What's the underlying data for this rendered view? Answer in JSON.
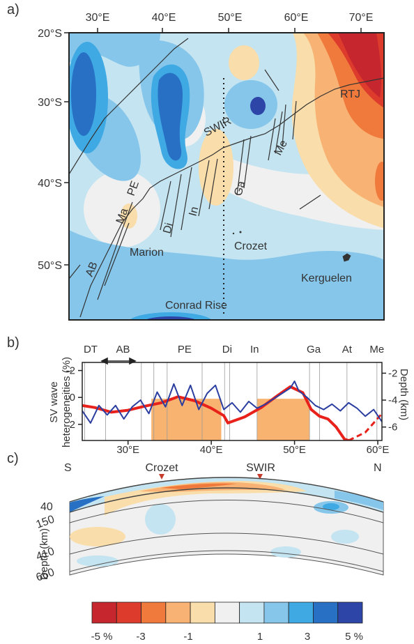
{
  "colors": {
    "ridge": "#333333",
    "frame": "#222222",
    "velocity_line": "#e8211b",
    "sv_line": "#2b3ea0",
    "ridge_fill": "#f7b36f"
  },
  "panel_a": {
    "label": "a)",
    "lon_ticks": [
      "30°E",
      "40°E",
      "50°E",
      "60°E",
      "70°E"
    ],
    "lat_ticks": [
      "20°S",
      "30°S",
      "40°S",
      "50°S"
    ],
    "features": {
      "rtj": "RTJ",
      "swir": "SWIR",
      "me": "Me",
      "ga": "Ga",
      "pe": "PE",
      "ma": "Ma",
      "di": "Di",
      "in": "In",
      "ab": "AB",
      "marion": "Marion",
      "crozet": "Crozet",
      "kerguelen": "Kerguelen",
      "conrad": "Conrad Rise"
    }
  },
  "panel_b": {
    "label": "b)",
    "ylabel_left_1": "SV wave",
    "ylabel_left_2": "heterogeneities (%)",
    "ylabel_right": "Depth (km)",
    "segments": [
      "DT",
      "AB",
      "PE",
      "Di",
      "In",
      "Ga",
      "At",
      "Me"
    ],
    "chart_data": {
      "type": "line",
      "x_ticks": [
        "30°E",
        "40°E",
        "50°E",
        "60°E"
      ],
      "xlim": [
        24.5,
        60.5
      ],
      "left_axis": {
        "ticks": [
          "-2",
          "0",
          "2"
        ],
        "ylim": [
          -2.6,
          3.2
        ],
        "inverted": true
      },
      "right_axis": {
        "ticks": [
          "-2",
          "-4",
          "-6"
        ],
        "ylim": [
          -1.2,
          -7.0
        ]
      },
      "shaded_x_ranges": [
        [
          32.8,
          41.2
        ],
        [
          45.5,
          51.8
        ]
      ],
      "series": [
        {
          "x": [
            24.5,
            26,
            28,
            30,
            32,
            34,
            36,
            38,
            40,
            41.5,
            42,
            44,
            46,
            48,
            49.5,
            51,
            52,
            53,
            54,
            55,
            56,
            56.5,
            57.5,
            58.5,
            59.5,
            60.5
          ],
          "y": [
            -4.4,
            -4.55,
            -4.9,
            -4.75,
            -4.45,
            -4.2,
            -3.75,
            -4.05,
            -4.6,
            -5.15,
            -5.7,
            -5.25,
            -4.55,
            -3.65,
            -3.0,
            -3.45,
            -4.7,
            -5.2,
            -5.4,
            -6.0,
            -6.9,
            -7.0,
            null,
            -6.4,
            -5.7,
            -5.0
          ],
          "axis": "right"
        },
        {
          "x": [
            24.5,
            25.5,
            26.5,
            27.5,
            28.5,
            29.5,
            30.5,
            31.5,
            32.5,
            33.5,
            34.5,
            35.5,
            36.5,
            37.5,
            38.5,
            39.5,
            40.5,
            41.5,
            42.5,
            43.5,
            44.5,
            45.5,
            46.5,
            47.5,
            48.5,
            49.5,
            50,
            50.5,
            51.5,
            52.5,
            53.5,
            54.5,
            55.5,
            56.5,
            57.5,
            58.5,
            59.5,
            60.5
          ],
          "y": [
            1.0,
            1.9,
            0.6,
            1.3,
            0.6,
            1.6,
            0.7,
            0.2,
            1.2,
            -0.4,
            0.7,
            -1.0,
            0.6,
            -0.9,
            0.9,
            -0.3,
            -0.9,
            0.9,
            0.4,
            1.1,
            0.3,
            0.8,
            0.5,
            0.1,
            -0.3,
            -0.7,
            -1.2,
            -0.5,
            0.0,
            0.6,
            0.9,
            0.5,
            1.0,
            0.4,
            0.8,
            1.4,
            0.9,
            1.8
          ],
          "axis": "left"
        }
      ]
    }
  },
  "panel_c": {
    "label": "c)",
    "south": "S",
    "north": "N",
    "crozet": "Crozet",
    "swir": "SWIR",
    "ylabel": "Depth (km)",
    "depths": [
      "40",
      "150",
      "410",
      "660"
    ]
  },
  "colorbar": {
    "colors": [
      "#c6262e",
      "#dd3b2c",
      "#ef7a3c",
      "#f8b374",
      "#f9ddaa",
      "#f0f0f0",
      "#c3e4f0",
      "#86c6ea",
      "#3fa9e4",
      "#2870c4",
      "#2c45a6"
    ],
    "tick_labels": [
      "-5 %",
      "-3",
      "-1",
      "1",
      "3",
      "5 %"
    ]
  }
}
